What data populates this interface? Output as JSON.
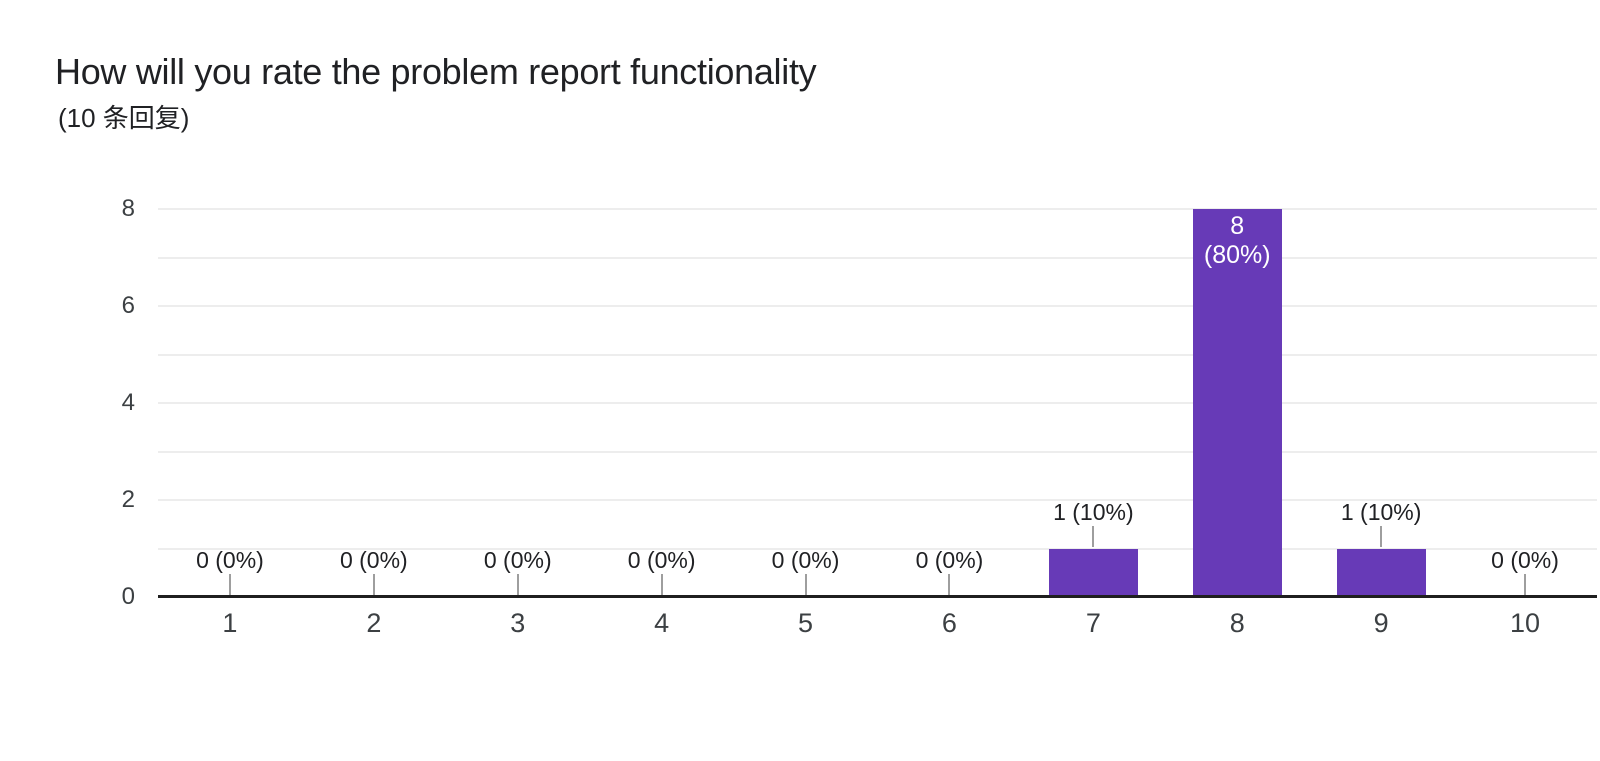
{
  "chart_data": {
    "type": "bar",
    "title": "How will you rate the problem report functionality",
    "subtitle": "(10 条回复)",
    "response_count": 10,
    "categories": [
      "1",
      "2",
      "3",
      "4",
      "5",
      "6",
      "7",
      "8",
      "9",
      "10"
    ],
    "values": [
      0,
      0,
      0,
      0,
      0,
      0,
      1,
      8,
      1,
      0
    ],
    "value_labels": [
      "0 (0%)",
      "0 (0%)",
      "0 (0%)",
      "0 (0%)",
      "0 (0%)",
      "0 (0%)",
      "1 (10%)",
      "8 (80%)",
      "1 (10%)",
      "0 (0%)"
    ],
    "xlabel": "",
    "ylabel": "",
    "ylim": [
      0,
      8
    ],
    "yticks": [
      0,
      2,
      4,
      6,
      8
    ],
    "gridlines": [
      1,
      2,
      3,
      4,
      5,
      6,
      7,
      8
    ],
    "grid": true,
    "legend_position": "none",
    "bar_color": "#673ab7",
    "inside_label_color": "#ffffff",
    "stem_color": "#9e9e9e",
    "baseline_color": "#1f1f1f"
  }
}
